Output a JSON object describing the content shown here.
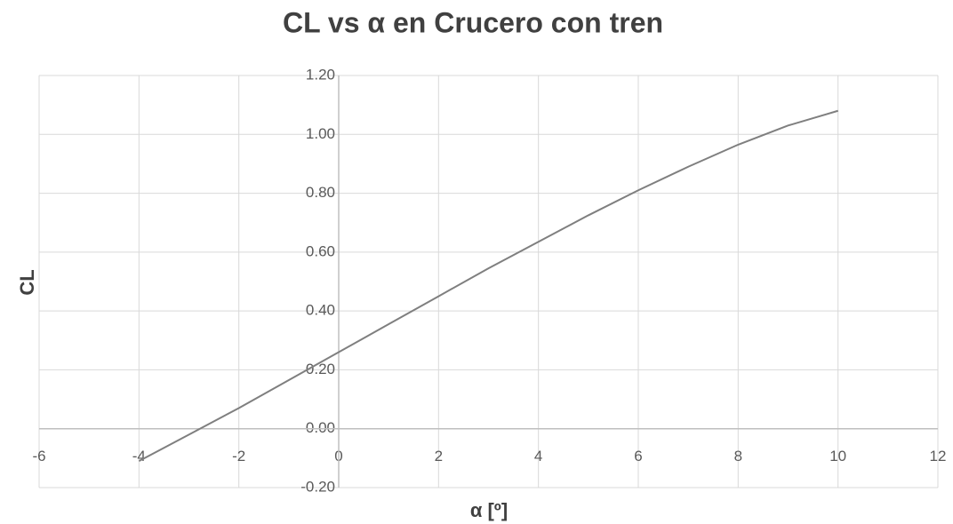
{
  "chart_data": {
    "type": "line",
    "title": "CL vs α en Crucero con tren",
    "x_label": "α [º]",
    "y_label": "CL",
    "x": [
      -4,
      -3,
      -2,
      -1,
      0,
      1,
      2,
      3,
      4,
      5,
      6,
      7,
      8,
      9,
      10
    ],
    "values": [
      -0.11,
      -0.02,
      0.07,
      0.165,
      0.26,
      0.355,
      0.45,
      0.545,
      0.635,
      0.725,
      0.81,
      0.89,
      0.965,
      1.03,
      1.08
    ],
    "color": "#7f7f7f",
    "xlim": [
      -6,
      12
    ],
    "xticks": [
      -6,
      -4,
      -2,
      0,
      2,
      4,
      6,
      8,
      10,
      12
    ],
    "ylim": [
      -0.2,
      1.2
    ],
    "yticks": [
      {
        "value": -0.2,
        "label": "-0.20"
      },
      {
        "value": 0,
        "label": "0.00"
      },
      {
        "value": 0.2,
        "label": "0.20"
      },
      {
        "value": 0.4,
        "label": "0.40"
      },
      {
        "value": 0.6,
        "label": "0.60"
      },
      {
        "value": 0.8,
        "label": "0.80"
      },
      {
        "value": 1.0,
        "label": "1.00"
      },
      {
        "value": 1.2,
        "label": "1.20"
      }
    ],
    "grid": true
  }
}
